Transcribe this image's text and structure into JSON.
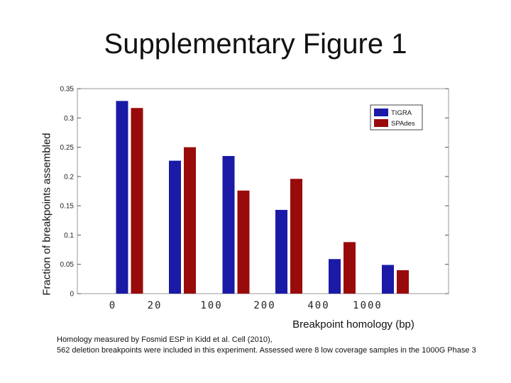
{
  "slide": {
    "title": "Supplementary Figure 1",
    "footnote_line1": "Homology measured by Fosmid ESP in Kidd et al. Cell (2010),",
    "footnote_line2": "562 deletion breakpoints were included in this experiment. Assessed were 8 low coverage samples in the 1000G Phase 3"
  },
  "chart_data": {
    "type": "bar",
    "categories": [
      "0",
      "20",
      "100",
      "200",
      "400",
      "1000"
    ],
    "series": [
      {
        "name": "TIGRA",
        "color": "#1a1aa6",
        "values": [
          0.329,
          0.227,
          0.235,
          0.143,
          0.059,
          0.049
        ]
      },
      {
        "name": "SPAdes",
        "color": "#990b0b",
        "values": [
          0.317,
          0.25,
          0.176,
          0.196,
          0.088,
          0.04
        ]
      }
    ],
    "xlabel": "Breakpoint homology (bp)",
    "ylabel": "Fraction of breakpoints assembled",
    "ylim": [
      0,
      0.35
    ],
    "yticks": [
      "0",
      "0.05",
      "0.1",
      "0.15",
      "0.2",
      "0.25",
      "0.3",
      "0.35"
    ],
    "grid": false,
    "legend_position": "top-right"
  }
}
